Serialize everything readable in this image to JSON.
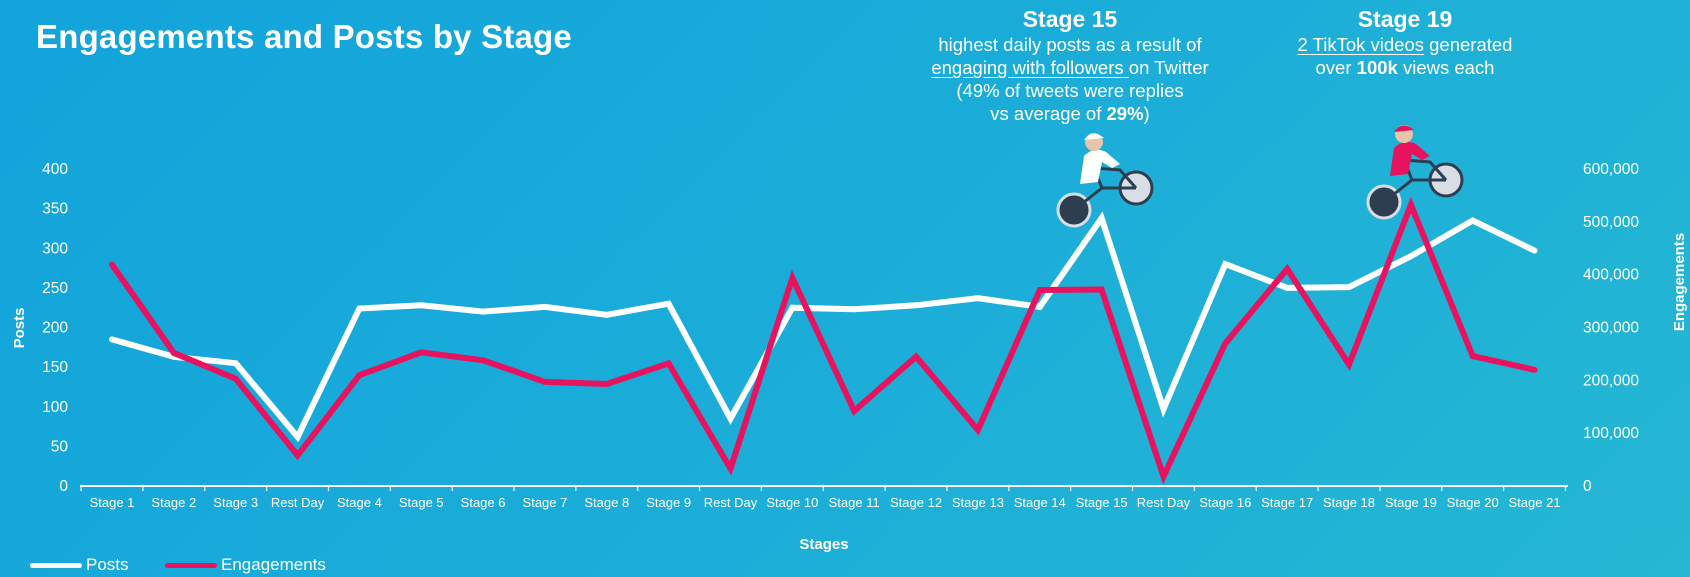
{
  "title": "Engagements and Posts by Stage",
  "callouts": {
    "stage15": {
      "heading": "Stage 15",
      "l1": "highest daily posts as a result of",
      "l2a": "engaging with followers ",
      "l2b": "on Twitter",
      "l3": "(49% of tweets were replies",
      "l4a": "vs average of ",
      "l4b": "29%",
      "l4c": ")"
    },
    "stage19": {
      "heading": "Stage 19",
      "l1a": "2 TikTok videos",
      "l1b": " generated",
      "l2a": "over ",
      "l2b": "100k",
      "l2c": " views each"
    }
  },
  "legend": {
    "posts": "Posts",
    "engagements": "Engagements"
  },
  "colors": {
    "posts": "#ffffff",
    "engagements": "#e8135f",
    "background": "#16a8d9"
  },
  "chart_data": {
    "type": "line",
    "xlabel": "Stages",
    "ylabel_left": "Posts",
    "ylabel_right": "Engagements",
    "ylim_left": [
      0,
      400
    ],
    "ylim_right": [
      0,
      600000
    ],
    "yticks_left": [
      "0",
      "50",
      "100",
      "150",
      "200",
      "250",
      "300",
      "350",
      "400"
    ],
    "yticks_right": [
      "0",
      "100,000",
      "200,000",
      "300,000",
      "400,000",
      "500,000",
      "600,000"
    ],
    "grid": false,
    "legend_position": "bottom-left",
    "categories": [
      "Stage 1",
      "Stage 2",
      "Stage 3",
      "Rest Day",
      "Stage 4",
      "Stage 5",
      "Stage 6",
      "Stage 7",
      "Stage 8",
      "Stage 9",
      "Rest Day",
      "Stage 10",
      "Stage 11",
      "Stage 12",
      "Stage 13",
      "Stage 14",
      "Stage 15",
      "Rest Day",
      "Stage 16",
      "Stage 17",
      "Stage 18",
      "Stage 19",
      "Stage 20",
      "Stage 21"
    ],
    "series": [
      {
        "name": "Posts",
        "axis": "left",
        "values": [
          185,
          163,
          155,
          62,
          224,
          228,
          220,
          226,
          216,
          230,
          85,
          225,
          223,
          228,
          237,
          226,
          338,
          97,
          280,
          250,
          251,
          290,
          335,
          297
        ]
      },
      {
        "name": "Engagements",
        "axis": "right",
        "values": [
          419000,
          252000,
          203000,
          58000,
          210000,
          253000,
          238000,
          197000,
          193000,
          232000,
          33000,
          394000,
          142000,
          245000,
          106000,
          371000,
          372000,
          18000,
          270000,
          411000,
          230000,
          532000,
          246000,
          220000
        ]
      }
    ]
  }
}
